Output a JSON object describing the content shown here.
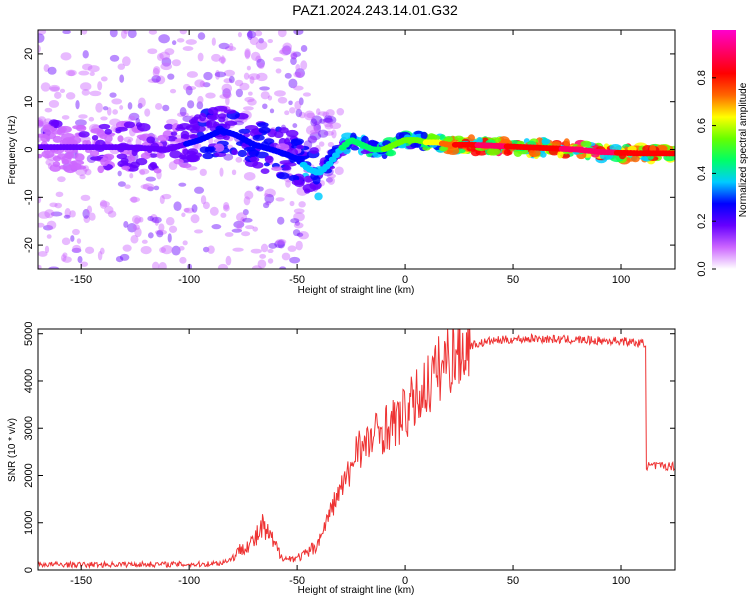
{
  "title": "PAZ1.2024.243.14.01.G32",
  "colors": {
    "snr_line": "#ee3333",
    "frame": "#000000",
    "colorbar": [
      "#ffffff",
      "#cc66ff",
      "#6600ff",
      "#0000ff",
      "#00ccff",
      "#00ff66",
      "#66ff00",
      "#ffff00",
      "#ff6600",
      "#ff0000",
      "#ff0066",
      "#ff00cc"
    ]
  },
  "chart_data": [
    {
      "type": "heatmap",
      "xlabel": "Height of straight line (km)",
      "ylabel": "Frequency (Hz)",
      "xlim": [
        -170,
        125
      ],
      "ylim": [
        -25,
        25
      ],
      "xticks": [
        -150,
        -100,
        -50,
        0,
        50,
        100
      ],
      "yticks": [
        -20,
        -10,
        0,
        10,
        20
      ],
      "colorbar": {
        "label": "Normalized spectral amplitude",
        "range": [
          0,
          1
        ],
        "ticks": [
          "0.0",
          "0.2",
          "0.4",
          "0.6",
          "0.8"
        ],
        "tick_values": [
          0,
          0.2,
          0.4,
          0.6,
          0.8
        ]
      },
      "ridge": {
        "x": [
          -170,
          -150,
          -130,
          -110,
          -95,
          -85,
          -78,
          -70,
          -62,
          -55,
          -50,
          -45,
          -40,
          -35,
          -30,
          -25,
          -20,
          -15,
          -10,
          -5,
          0,
          5,
          10,
          15,
          20,
          30,
          40,
          50,
          60,
          70,
          80,
          90,
          100,
          110,
          125
        ],
        "y": [
          0.5,
          0.5,
          0.5,
          0,
          2,
          4,
          3,
          1,
          0,
          -1,
          -2,
          -4,
          -5,
          -3,
          0,
          2,
          1,
          0,
          0,
          1,
          2,
          2,
          1.5,
          1.5,
          1,
          1,
          0.8,
          0.6,
          0.4,
          0.2,
          0,
          -0.5,
          -0.7,
          -0.8,
          -0.8
        ],
        "amplitude": [
          0.15,
          0.15,
          0.2,
          0.2,
          0.25,
          0.3,
          0.3,
          0.3,
          0.3,
          0.3,
          0.3,
          0.35,
          0.35,
          0.35,
          0.4,
          0.45,
          0.45,
          0.45,
          0.5,
          0.5,
          0.5,
          0.55,
          0.6,
          0.65,
          0.75,
          0.85,
          0.9,
          0.85,
          0.8,
          0.85,
          0.9,
          0.9,
          0.85,
          0.85,
          0.85
        ]
      }
    },
    {
      "type": "line",
      "xlabel": "Height of straight line (km)",
      "ylabel": "SNR (10 * v/v)",
      "xlim": [
        -170,
        125
      ],
      "ylim": [
        0,
        5100
      ],
      "xticks": [
        -150,
        -100,
        -50,
        0,
        50,
        100
      ],
      "yticks": [
        0,
        1000,
        2000,
        3000,
        4000,
        5000
      ],
      "series": [
        {
          "x": [
            -170,
            -150,
            -130,
            -110,
            -95,
            -85,
            -80,
            -75,
            -70,
            -66,
            -62,
            -58,
            -55,
            -50,
            -45,
            -40,
            -35,
            -30,
            -25,
            -22,
            -20,
            -15,
            -10,
            -5,
            0,
            5,
            10,
            15,
            20,
            25,
            30,
            35,
            40,
            50,
            60,
            70,
            80,
            90,
            100,
            108,
            110,
            111,
            115,
            125
          ],
          "y": [
            120,
            110,
            120,
            120,
            120,
            150,
            250,
            500,
            600,
            900,
            650,
            350,
            230,
            260,
            350,
            600,
            1200,
            1700,
            2100,
            2800,
            2500,
            2800,
            3000,
            3100,
            3300,
            3600,
            3900,
            4200,
            4500,
            4650,
            4750,
            4800,
            4850,
            4880,
            4900,
            4880,
            4870,
            4850,
            4850,
            4800,
            4750,
            2200,
            2200,
            2200
          ]
        }
      ]
    }
  ]
}
